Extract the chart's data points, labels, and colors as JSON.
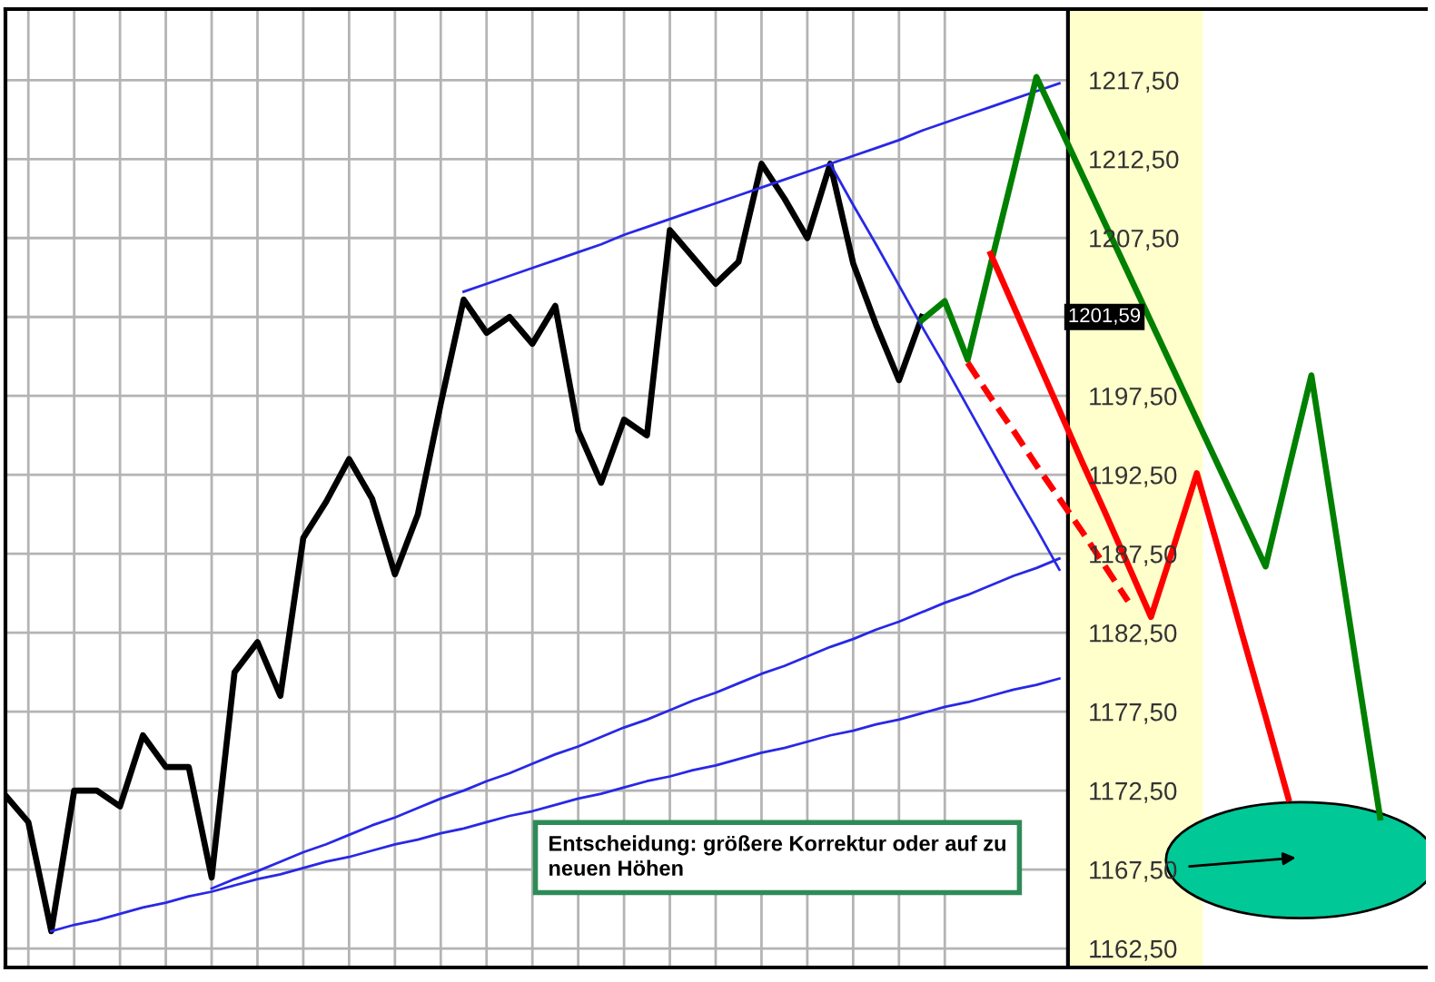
{
  "chart_data": {
    "type": "line",
    "ylim": [
      1161.3,
      1222
    ],
    "categories": [
      null,
      null,
      null,
      null,
      null,
      null,
      null,
      null,
      null,
      null,
      null,
      null,
      null,
      null,
      null,
      null,
      null,
      null,
      null,
      null,
      null,
      null,
      null,
      null,
      null,
      null,
      null,
      null,
      null,
      null,
      null,
      null,
      null,
      null,
      null,
      null,
      null,
      null,
      null,
      null,
      null,
      null,
      null,
      null,
      null,
      null,
      null,
      null,
      null,
      null,
      null,
      null,
      null,
      null,
      null,
      null,
      null,
      null,
      null,
      null,
      null,
      null,
      null
    ],
    "yticks": [
      {
        "value": 1162.5,
        "label": "1162,50"
      },
      {
        "value": 1167.5,
        "label": "1167,50"
      },
      {
        "value": 1172.5,
        "label": "1172,50"
      },
      {
        "value": 1177.5,
        "label": "1177,50"
      },
      {
        "value": 1182.5,
        "label": "1182,50"
      },
      {
        "value": 1187.5,
        "label": "1187,50"
      },
      {
        "value": 1192.5,
        "label": "1192,50"
      },
      {
        "value": 1197.5,
        "label": "1197,50"
      },
      {
        "value": 1202.5,
        "label": null
      },
      {
        "value": 1207.5,
        "label": "1207,50"
      },
      {
        "value": 1212.5,
        "label": "1212,50"
      },
      {
        "value": 1217.5,
        "label": "1217,50"
      }
    ],
    "tick_labels": "y",
    "grid": true,
    "series": [
      {
        "color": "#000000",
        "values": [
          1172.2,
          1170.5,
          1163.6,
          1172.5,
          1172.5,
          1171.5,
          1176,
          1174,
          1174,
          1167,
          1180.0,
          1181.9,
          1178.5,
          1188.5,
          1190.8,
          1193.5,
          1191,
          1186.2,
          1190,
          1197,
          1203.6,
          1201.5,
          1202.5,
          1200.8,
          1203.2,
          1195.3,
          1192.0,
          1196,
          1195,
          1208,
          1206.3,
          1204.6,
          1206,
          1212.2,
          1210,
          1207.5,
          1212.2,
          1205.9,
          1202,
          1198.5,
          1202.5,
          null,
          null,
          null,
          null,
          null,
          null,
          null,
          null,
          null,
          null,
          null,
          null,
          null,
          null,
          null,
          null,
          null,
          null,
          null,
          null,
          null,
          null
        ]
      },
      {
        "color": "#2828e6",
        "values": [
          null,
          null,
          null,
          null,
          null,
          null,
          null,
          null,
          null,
          null,
          null,
          null,
          null,
          null,
          null,
          null,
          null,
          null,
          null,
          null,
          1204.1,
          1204.6,
          1205.1,
          1205.6,
          1206.1,
          1206.6,
          1207.1,
          1207.7,
          1208.2,
          1208.7,
          1209.2,
          1209.7,
          1210.2,
          1210.7,
          1211.2,
          1211.7,
          1212.2,
          1212.7,
          1213.2,
          1213.7,
          1214.3,
          1214.8,
          1215.3,
          1215.8,
          1216.3,
          1216.8,
          1217.3,
          null,
          null,
          null,
          null,
          null,
          null,
          null,
          null,
          null,
          null,
          null,
          null,
          null,
          null,
          null,
          null
        ]
      },
      {
        "color": "#2828e6",
        "values": [
          null,
          null,
          null,
          null,
          null,
          null,
          null,
          null,
          null,
          null,
          null,
          null,
          null,
          null,
          null,
          null,
          null,
          null,
          null,
          null,
          null,
          null,
          null,
          null,
          null,
          null,
          null,
          null,
          null,
          null,
          null,
          null,
          null,
          null,
          null,
          null,
          1212.2,
          1209.6,
          1207.1,
          1204.5,
          1201.9,
          1199.4,
          1196.8,
          1194.2,
          1191.6,
          1189.1,
          1186.5,
          null,
          null,
          null,
          null,
          null,
          null,
          null,
          null,
          null,
          null,
          null,
          null,
          null,
          null,
          null,
          null
        ]
      },
      {
        "color": "#2828e6",
        "values": [
          null,
          null,
          1163.6,
          1164.0,
          1164.3,
          1164.7,
          1165.1,
          1165.4,
          1165.8,
          1166.1,
          1166.5,
          1166.9,
          1167.2,
          1167.6,
          1168.0,
          1168.3,
          1168.7,
          1169.1,
          1169.4,
          1169.8,
          1170.1,
          1170.5,
          1170.9,
          1171.2,
          1171.6,
          1172.0,
          1172.3,
          1172.7,
          1173.1,
          1173.4,
          1173.8,
          1174.1,
          1174.5,
          1174.9,
          1175.2,
          1175.6,
          1176.0,
          1176.3,
          1176.7,
          1177.0,
          1177.4,
          1177.8,
          1178.1,
          1178.5,
          1178.9,
          1179.2,
          1179.6,
          null,
          null,
          null,
          null,
          null,
          null,
          null,
          null,
          null,
          null,
          null,
          null,
          null,
          null,
          null,
          null
        ]
      },
      {
        "color": "#2828e6",
        "values": [
          null,
          null,
          null,
          null,
          null,
          null,
          null,
          null,
          null,
          1166.3,
          1166.9,
          1167.4,
          1168.0,
          1168.6,
          1169.1,
          1169.7,
          1170.3,
          1170.8,
          1171.4,
          1172.0,
          1172.5,
          1173.1,
          1173.6,
          1174.2,
          1174.8,
          1175.3,
          1175.9,
          1176.5,
          1177.0,
          1177.6,
          1178.2,
          1178.7,
          1179.3,
          1179.9,
          1180.4,
          1181.0,
          1181.6,
          1182.1,
          1182.7,
          1183.2,
          1183.8,
          1184.4,
          1184.9,
          1185.5,
          1186.1,
          1186.6,
          1187.2,
          null,
          null,
          null,
          null,
          null,
          null,
          null,
          null,
          null,
          null,
          null,
          null,
          null,
          null,
          null,
          null
        ]
      },
      {
        "color": "#008000",
        "values": [
          null,
          null,
          null,
          null,
          null,
          null,
          null,
          null,
          null,
          null,
          null,
          null,
          null,
          null,
          null,
          null,
          null,
          null,
          null,
          null,
          null,
          null,
          null,
          null,
          null,
          null,
          null,
          null,
          null,
          null,
          null,
          null,
          null,
          null,
          null,
          null,
          null,
          null,
          null,
          null,
          1202.3,
          1203.5,
          1199.8,
          1205.8,
          1211.7,
          1217.7,
          1214.6,
          1211.5,
          1208.4,
          1205.3,
          1202.2,
          1199.1,
          1196.0,
          1192.9,
          1189.8,
          1186.7,
          1192.8,
          1198.8,
          1189.5,
          1180.1,
          1170.8,
          null,
          null
        ]
      },
      {
        "color": "#ff0000",
        "values": [
          null,
          null,
          null,
          null,
          null,
          null,
          null,
          null,
          null,
          null,
          null,
          null,
          null,
          null,
          null,
          null,
          null,
          null,
          null,
          null,
          null,
          null,
          null,
          null,
          null,
          null,
          null,
          null,
          null,
          null,
          null,
          null,
          null,
          null,
          null,
          null,
          null,
          null,
          null,
          null,
          null,
          null,
          null,
          1206.5,
          1203.2,
          1199.9,
          1196.6,
          1193.3,
          1190.1,
          1186.8,
          1183.5,
          1188.0,
          1192.6,
          1187.5,
          1182.3,
          1177.2,
          1172.0,
          null,
          null,
          null,
          null,
          null,
          null
        ]
      },
      {
        "color": "#ff0000",
        "line_style": "dashed",
        "values": [
          null,
          null,
          null,
          null,
          null,
          null,
          null,
          null,
          null,
          null,
          null,
          null,
          null,
          null,
          null,
          null,
          null,
          null,
          null,
          null,
          null,
          null,
          null,
          null,
          null,
          null,
          null,
          null,
          null,
          null,
          null,
          null,
          null,
          null,
          null,
          null,
          null,
          null,
          null,
          null,
          null,
          null,
          1199.6,
          1197.4,
          1195.3,
          1193.1,
          1191.0,
          1188.9,
          1186.7,
          1184.5,
          null,
          null,
          null,
          null,
          null,
          null,
          null,
          null,
          null,
          null,
          null,
          null,
          null
        ]
      }
    ],
    "annotations": [
      "1201,59",
      "Entscheidung: größere Korrektur oder auf zu neuen Höhen"
    ]
  }
}
